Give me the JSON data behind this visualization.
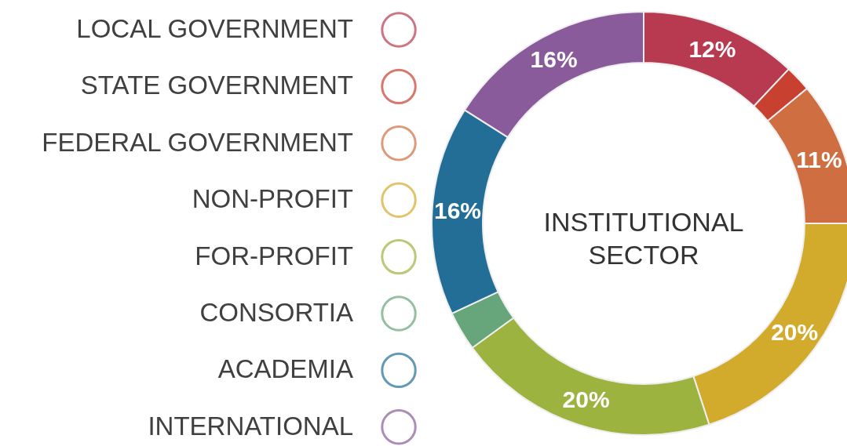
{
  "chart_data": {
    "type": "donut",
    "title": "INSTITUTIONAL SECTOR",
    "categories": [
      "LOCAL GOVERNMENT",
      "STATE GOVERNMENT",
      "FEDERAL GOVERNMENT",
      "NON-PROFIT",
      "FOR-PROFIT",
      "CONSORTIA",
      "ACADEMIA",
      "INTERNATIONAL"
    ],
    "values": [
      12,
      2,
      11,
      20,
      20,
      3,
      16,
      16
    ],
    "value_labels": [
      "12%",
      null,
      "11%",
      "20%",
      "20%",
      null,
      "16%",
      "16%"
    ],
    "colors": [
      "#b83a50",
      "#c8402f",
      "#cf6e40",
      "#d3ab2c",
      "#9db340",
      "#67a57a",
      "#236e96",
      "#8a5b9a"
    ],
    "legend": "left"
  }
}
